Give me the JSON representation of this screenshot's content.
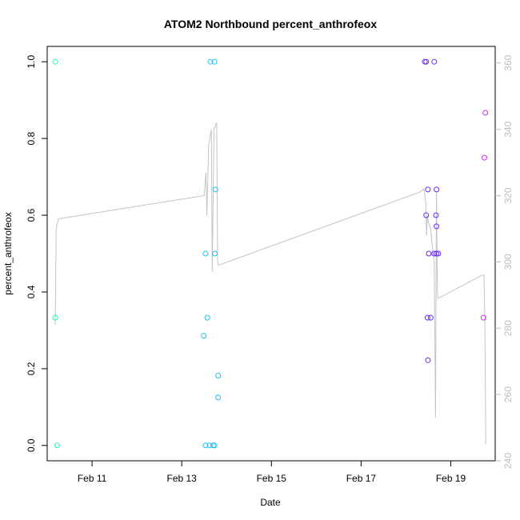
{
  "chart_data": {
    "type": "scatter",
    "title": "ATOM2 Northbound percent_anthrofeox",
    "xlabel": "Date",
    "ylabel": "percent_anthrofeox",
    "y2label": "",
    "xlim": [
      10.0,
      19.99
    ],
    "ylim": [
      -0.04,
      1.04
    ],
    "y2lim": [
      240,
      365
    ],
    "xticks": [
      {
        "value": 11,
        "label": "Feb 11"
      },
      {
        "value": 13,
        "label": "Feb 13"
      },
      {
        "value": 15,
        "label": "Feb 15"
      },
      {
        "value": 17,
        "label": "Feb 17"
      },
      {
        "value": 19,
        "label": "Feb 19"
      }
    ],
    "yticks": [
      {
        "value": 0.0,
        "label": "0.0"
      },
      {
        "value": 0.2,
        "label": "0.2"
      },
      {
        "value": 0.4,
        "label": "0.4"
      },
      {
        "value": 0.6,
        "label": "0.6"
      },
      {
        "value": 0.8,
        "label": "0.8"
      },
      {
        "value": 1.0,
        "label": "1.0"
      }
    ],
    "y2ticks": [
      {
        "value": 240,
        "label": "240"
      },
      {
        "value": 260,
        "label": "260"
      },
      {
        "value": 280,
        "label": "280"
      },
      {
        "value": 300,
        "label": "300"
      },
      {
        "value": 320,
        "label": "320"
      },
      {
        "value": 340,
        "label": "340"
      },
      {
        "value": 360,
        "label": "360"
      }
    ],
    "grid": false,
    "points": [
      {
        "x": 10.18,
        "y": 1.0,
        "color": "#2af5b0"
      },
      {
        "x": 10.18,
        "y": 0.333,
        "color": "#2af5b0"
      },
      {
        "x": 10.22,
        "y": 0.0,
        "color": "#2af5b0"
      },
      {
        "x": 13.64,
        "y": 1.0,
        "color": "#1ec2f0"
      },
      {
        "x": 13.73,
        "y": 1.0,
        "color": "#1ec2f0"
      },
      {
        "x": 13.75,
        "y": 0.667,
        "color": "#1ec2f0"
      },
      {
        "x": 13.53,
        "y": 0.5,
        "color": "#1ec2f0"
      },
      {
        "x": 13.74,
        "y": 0.5,
        "color": "#1ec2f0"
      },
      {
        "x": 13.57,
        "y": 0.333,
        "color": "#1ec2f0"
      },
      {
        "x": 13.49,
        "y": 0.286,
        "color": "#1ec2f0"
      },
      {
        "x": 13.81,
        "y": 0.182,
        "color": "#1ec2f0"
      },
      {
        "x": 13.81,
        "y": 0.125,
        "color": "#1ec2f0"
      },
      {
        "x": 13.53,
        "y": 0.0,
        "color": "#1ec2f0"
      },
      {
        "x": 13.62,
        "y": 0.0,
        "color": "#1ec2f0"
      },
      {
        "x": 13.7,
        "y": 0.0,
        "color": "#1ec2f0"
      },
      {
        "x": 13.73,
        "y": 0.0,
        "color": "#1ec2f0"
      },
      {
        "x": 18.42,
        "y": 1.0,
        "color": "#6a2ef0"
      },
      {
        "x": 18.45,
        "y": 1.0,
        "color": "#6a2ef0"
      },
      {
        "x": 18.63,
        "y": 1.0,
        "color": "#6a2ef0"
      },
      {
        "x": 18.49,
        "y": 0.667,
        "color": "#6a2ef0"
      },
      {
        "x": 18.68,
        "y": 0.667,
        "color": "#6a2ef0"
      },
      {
        "x": 18.45,
        "y": 0.6,
        "color": "#6a2ef0"
      },
      {
        "x": 18.67,
        "y": 0.6,
        "color": "#6a2ef0"
      },
      {
        "x": 18.68,
        "y": 0.571,
        "color": "#6a2ef0"
      },
      {
        "x": 18.51,
        "y": 0.5,
        "color": "#6a2ef0"
      },
      {
        "x": 18.63,
        "y": 0.5,
        "color": "#6a2ef0"
      },
      {
        "x": 18.68,
        "y": 0.5,
        "color": "#6a2ef0"
      },
      {
        "x": 18.72,
        "y": 0.5,
        "color": "#6a2ef0"
      },
      {
        "x": 18.48,
        "y": 0.333,
        "color": "#6a2ef0"
      },
      {
        "x": 18.55,
        "y": 0.333,
        "color": "#6a2ef0"
      },
      {
        "x": 18.49,
        "y": 0.222,
        "color": "#6a2ef0"
      },
      {
        "x": 19.77,
        "y": 0.867,
        "color": "#d02ef0"
      },
      {
        "x": 19.75,
        "y": 0.75,
        "color": "#d02ef0"
      },
      {
        "x": 19.73,
        "y": 0.333,
        "color": "#d02ef0"
      }
    ],
    "line2": {
      "color": "#c4c4c4",
      "points": [
        [
          10.18,
          281
        ],
        [
          10.2,
          310
        ],
        [
          10.25,
          313
        ],
        [
          13.5,
          320
        ],
        [
          13.54,
          327
        ],
        [
          13.56,
          314
        ],
        [
          13.6,
          335
        ],
        [
          13.66,
          340
        ],
        [
          13.68,
          297
        ],
        [
          13.72,
          340
        ],
        [
          13.78,
          342
        ],
        [
          13.8,
          300
        ],
        [
          13.82,
          299
        ],
        [
          18.3,
          321
        ],
        [
          18.4,
          322
        ],
        [
          18.42,
          320
        ],
        [
          18.44,
          318
        ],
        [
          18.46,
          308
        ],
        [
          18.48,
          314
        ],
        [
          18.5,
          312
        ],
        [
          18.55,
          310
        ],
        [
          18.6,
          303
        ],
        [
          18.63,
          300
        ],
        [
          18.66,
          253
        ],
        [
          18.68,
          321
        ],
        [
          18.7,
          291
        ],
        [
          18.72,
          289
        ],
        [
          19.7,
          296
        ],
        [
          19.74,
          296
        ],
        [
          19.76,
          282
        ],
        [
          19.78,
          245
        ]
      ]
    }
  }
}
